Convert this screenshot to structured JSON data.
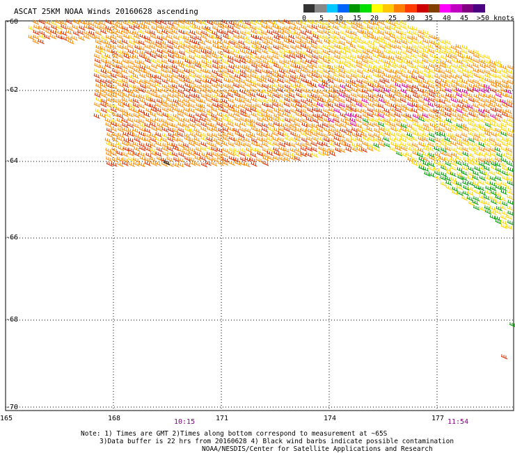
{
  "title": "ASCAT 25KM NOAA Winds 20160628 ascending",
  "legend": {
    "labels": [
      "0",
      "5",
      "10",
      "15",
      "20",
      "25",
      "30",
      "35",
      "40",
      "45",
      ">50 knots"
    ],
    "colors": [
      "#333333",
      "#888888",
      "#00c8ff",
      "#0064ff",
      "#009600",
      "#00e000",
      "#ffff00",
      "#ffc800",
      "#ff8000",
      "#ff3c00",
      "#cc0000",
      "#804000",
      "#ff00ff",
      "#c000c0",
      "#800080",
      "#4b0082"
    ]
  },
  "latitudes": [
    "-60",
    "-62",
    "-64",
    "-66",
    "-68",
    "-70"
  ],
  "longitudes": [
    "165",
    "168",
    "171",
    "174",
    "177"
  ],
  "times": [
    "10:15",
    "11:54"
  ],
  "notes": [
    "Note: 1) Times are GMT 2)Times along bottom correspond to measurement at ~65S",
    "3)Data buffer is 22 hrs from 20160628 4) Black wind barbs indicate possible contamination",
    "NOAA/NESDIS/Center for Satellite Applications and Research"
  ],
  "barb_colors": {
    "yellow": "#ffd700",
    "orange": "#ff8c00",
    "red": "#e03000",
    "magenta": "#e000a0",
    "green": "#00a000",
    "black": "#000000"
  }
}
